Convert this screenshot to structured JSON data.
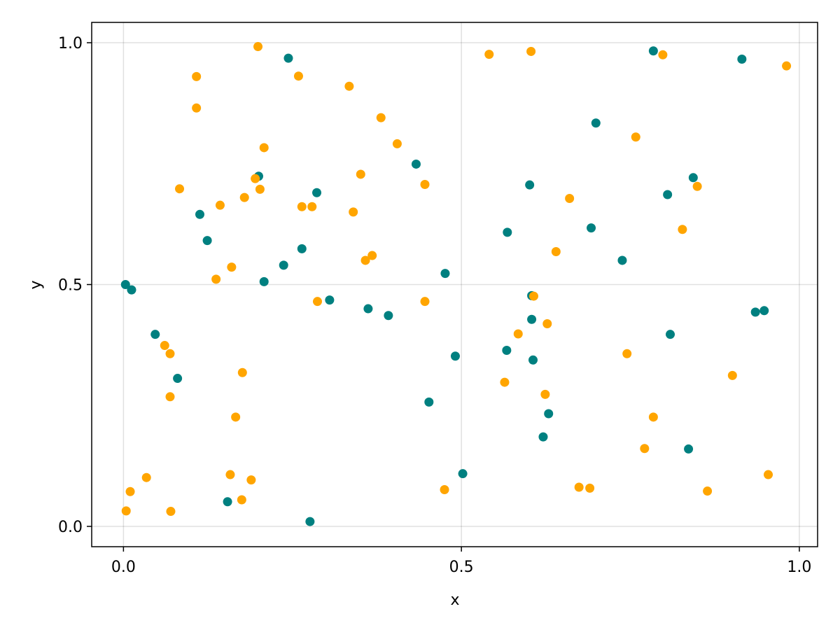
{
  "chart_data": {
    "type": "scatter",
    "title": "",
    "xlabel": "x",
    "ylabel": "y",
    "xlim": [
      -0.047,
      1.027
    ],
    "ylim": [
      -0.042,
      1.042
    ],
    "x_ticks": [
      "0.0",
      "0.5",
      "1.0"
    ],
    "y_ticks": [
      "0.0",
      "0.5",
      "1.0"
    ],
    "x_tick_values": [
      0.0,
      0.5,
      1.0
    ],
    "y_tick_values": [
      0.0,
      0.5,
      1.0
    ],
    "grid": true,
    "legend": "none",
    "series": [
      {
        "color": "#008080",
        "points": [
          [
            0.003,
            0.5
          ],
          [
            0.012,
            0.489
          ],
          [
            0.047,
            0.397
          ],
          [
            0.08,
            0.306
          ],
          [
            0.113,
            0.645
          ],
          [
            0.124,
            0.591
          ],
          [
            0.154,
            0.051
          ],
          [
            0.2,
            0.724
          ],
          [
            0.208,
            0.506
          ],
          [
            0.237,
            0.54
          ],
          [
            0.244,
            0.968
          ],
          [
            0.264,
            0.574
          ],
          [
            0.276,
            0.01
          ],
          [
            0.286,
            0.69
          ],
          [
            0.305,
            0.468
          ],
          [
            0.362,
            0.45
          ],
          [
            0.392,
            0.436
          ],
          [
            0.433,
            0.749
          ],
          [
            0.452,
            0.257
          ],
          [
            0.476,
            0.523
          ],
          [
            0.491,
            0.352
          ],
          [
            0.502,
            0.109
          ],
          [
            0.567,
            0.364
          ],
          [
            0.568,
            0.608
          ],
          [
            0.601,
            0.706
          ],
          [
            0.604,
            0.477
          ],
          [
            0.604,
            0.428
          ],
          [
            0.606,
            0.344
          ],
          [
            0.621,
            0.185
          ],
          [
            0.629,
            0.233
          ],
          [
            0.692,
            0.617
          ],
          [
            0.699,
            0.834
          ],
          [
            0.738,
            0.55
          ],
          [
            0.784,
            0.983
          ],
          [
            0.805,
            0.686
          ],
          [
            0.809,
            0.397
          ],
          [
            0.836,
            0.16
          ],
          [
            0.843,
            0.721
          ],
          [
            0.915,
            0.966
          ],
          [
            0.935,
            0.443
          ],
          [
            0.948,
            0.446
          ]
        ]
      },
      {
        "color": "#ffa500",
        "points": [
          [
            0.004,
            0.032
          ],
          [
            0.01,
            0.072
          ],
          [
            0.034,
            0.101
          ],
          [
            0.061,
            0.374
          ],
          [
            0.069,
            0.268
          ],
          [
            0.069,
            0.357
          ],
          [
            0.07,
            0.031
          ],
          [
            0.083,
            0.698
          ],
          [
            0.108,
            0.93
          ],
          [
            0.108,
            0.865
          ],
          [
            0.137,
            0.511
          ],
          [
            0.143,
            0.664
          ],
          [
            0.158,
            0.107
          ],
          [
            0.16,
            0.536
          ],
          [
            0.166,
            0.226
          ],
          [
            0.175,
            0.055
          ],
          [
            0.176,
            0.318
          ],
          [
            0.179,
            0.68
          ],
          [
            0.189,
            0.096
          ],
          [
            0.195,
            0.719
          ],
          [
            0.199,
            0.992
          ],
          [
            0.202,
            0.697
          ],
          [
            0.208,
            0.783
          ],
          [
            0.259,
            0.931
          ],
          [
            0.264,
            0.661
          ],
          [
            0.279,
            0.661
          ],
          [
            0.287,
            0.465
          ],
          [
            0.334,
            0.91
          ],
          [
            0.34,
            0.65
          ],
          [
            0.351,
            0.728
          ],
          [
            0.358,
            0.55
          ],
          [
            0.368,
            0.56
          ],
          [
            0.381,
            0.845
          ],
          [
            0.405,
            0.791
          ],
          [
            0.446,
            0.465
          ],
          [
            0.446,
            0.707
          ],
          [
            0.475,
            0.076
          ],
          [
            0.541,
            0.976
          ],
          [
            0.564,
            0.298
          ],
          [
            0.584,
            0.398
          ],
          [
            0.603,
            0.982
          ],
          [
            0.607,
            0.476
          ],
          [
            0.624,
            0.273
          ],
          [
            0.627,
            0.419
          ],
          [
            0.64,
            0.568
          ],
          [
            0.66,
            0.678
          ],
          [
            0.674,
            0.081
          ],
          [
            0.69,
            0.079
          ],
          [
            0.745,
            0.357
          ],
          [
            0.758,
            0.805
          ],
          [
            0.771,
            0.161
          ],
          [
            0.784,
            0.226
          ],
          [
            0.798,
            0.975
          ],
          [
            0.827,
            0.614
          ],
          [
            0.849,
            0.703
          ],
          [
            0.864,
            0.073
          ],
          [
            0.901,
            0.312
          ],
          [
            0.954,
            0.107
          ],
          [
            0.981,
            0.952
          ]
        ]
      }
    ]
  }
}
